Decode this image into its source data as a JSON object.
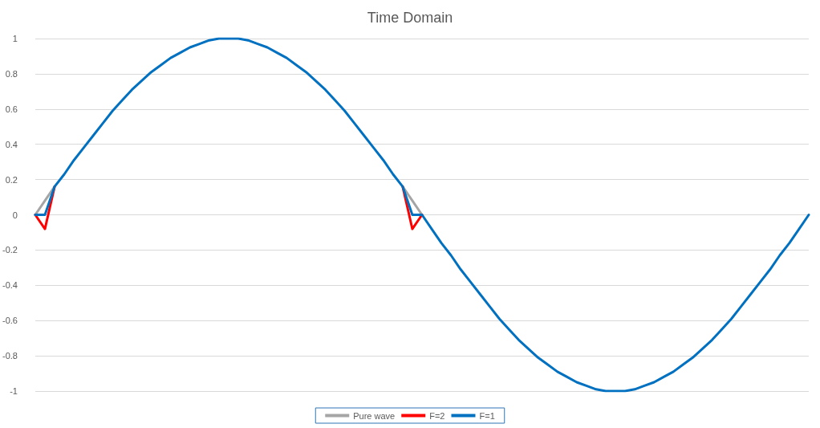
{
  "chart_data": {
    "type": "line",
    "title": "Time Domain",
    "categories": [
      null,
      null,
      null,
      null,
      null,
      null,
      null,
      null,
      null,
      null,
      null,
      null,
      null,
      null,
      null,
      null,
      null,
      null,
      null,
      null,
      null,
      null,
      null,
      null,
      null,
      null,
      null,
      null,
      null,
      null,
      null,
      null,
      null,
      null,
      null,
      null,
      null,
      null,
      null,
      null,
      null,
      null,
      null,
      null,
      null,
      null,
      null,
      null,
      null,
      null,
      null,
      null,
      null,
      null,
      null,
      null,
      null,
      null,
      null,
      null,
      null,
      null,
      null,
      null,
      null,
      null,
      null,
      null,
      null,
      null,
      null,
      null,
      null,
      null,
      null,
      null,
      null,
      null,
      null,
      null,
      null
    ],
    "ylim": [
      -1,
      1
    ],
    "yticks": [
      -1,
      -0.8,
      -0.6,
      -0.4,
      -0.2,
      0,
      0.2,
      0.4,
      0.6,
      0.8,
      1
    ],
    "tick_labels": "y",
    "grid": "y",
    "legend": "bottom",
    "marker": "none",
    "line_style": "solid",
    "series": [
      {
        "name": "Pure wave",
        "color": "#a5a5a5",
        "values": [
          0,
          0.08,
          0.16,
          null,
          null,
          null,
          null,
          null,
          null,
          null,
          null,
          null,
          null,
          null,
          null,
          null,
          null,
          null,
          null,
          null,
          null,
          null,
          null,
          null,
          null,
          null,
          null,
          null,
          null,
          null,
          null,
          null,
          null,
          null,
          null,
          null,
          null,
          null,
          0.16,
          0.08,
          0,
          null,
          null,
          null,
          null,
          null,
          null,
          null,
          null,
          null,
          null,
          null,
          null,
          null,
          null,
          null,
          null,
          null,
          null,
          null,
          null,
          null,
          null,
          null,
          null,
          null,
          null,
          null,
          null,
          null,
          null,
          null,
          null,
          null,
          null,
          null,
          null,
          null,
          null,
          null,
          null
        ]
      },
      {
        "name": "F=2",
        "color": "#ff0000",
        "values": [
          0,
          -0.08,
          0.16,
          null,
          null,
          null,
          null,
          null,
          null,
          null,
          null,
          null,
          null,
          null,
          null,
          null,
          null,
          null,
          null,
          null,
          null,
          null,
          null,
          null,
          null,
          null,
          null,
          null,
          null,
          null,
          null,
          null,
          null,
          null,
          null,
          null,
          null,
          null,
          0.16,
          -0.08,
          0,
          null,
          null,
          null,
          null,
          null,
          null,
          null,
          null,
          null,
          null,
          null,
          null,
          null,
          null,
          null,
          null,
          null,
          null,
          null,
          null,
          null,
          null,
          null,
          null,
          null,
          null,
          null,
          null,
          null,
          null,
          null,
          null,
          null,
          null,
          null,
          null,
          null,
          null,
          null,
          null
        ]
      },
      {
        "name": "F=1",
        "color": "#0070c0",
        "values": [
          0,
          0,
          0.16,
          0.23,
          0.31,
          0.38,
          0.45,
          0.52,
          0.59,
          0.65,
          0.71,
          0.76,
          0.81,
          0.85,
          0.89,
          0.92,
          0.95,
          0.97,
          0.99,
          1,
          1,
          1,
          0.99,
          0.97,
          0.95,
          0.92,
          0.89,
          0.85,
          0.81,
          0.76,
          0.71,
          0.65,
          0.59,
          0.52,
          0.45,
          0.38,
          0.31,
          0.23,
          0.16,
          0,
          0,
          -0.08,
          -0.16,
          -0.23,
          -0.31,
          -0.38,
          -0.45,
          -0.52,
          -0.59,
          -0.65,
          -0.71,
          -0.76,
          -0.81,
          -0.85,
          -0.89,
          -0.92,
          -0.95,
          -0.97,
          -0.99,
          -1,
          -1,
          -1,
          -0.99,
          -0.97,
          -0.95,
          -0.92,
          -0.89,
          -0.85,
          -0.81,
          -0.76,
          -0.71,
          -0.65,
          -0.59,
          -0.52,
          -0.45,
          -0.38,
          -0.31,
          -0.23,
          -0.16,
          -0.08,
          0
        ]
      }
    ]
  }
}
